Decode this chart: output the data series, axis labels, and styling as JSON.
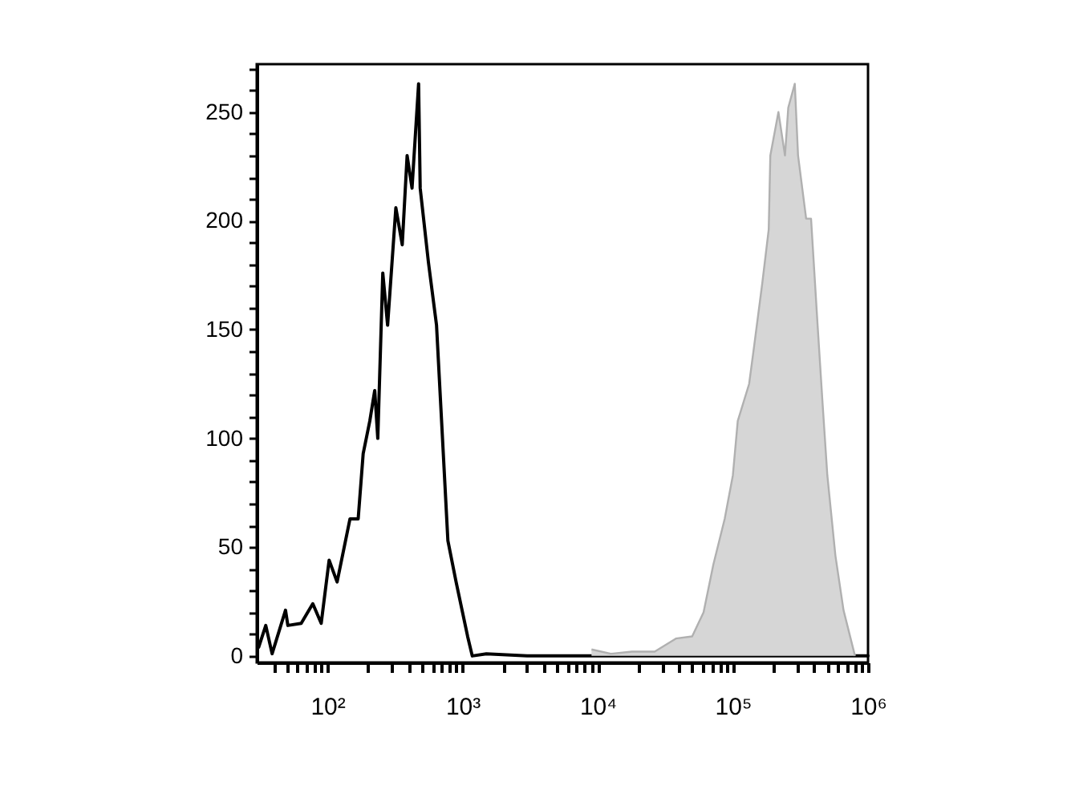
{
  "chart_data": {
    "type": "line",
    "log": "x",
    "grid": false,
    "xlim": [
      30,
      1000000
    ],
    "ylim": [
      -3,
      272
    ],
    "xticks": [
      {
        "value": 40,
        "label": null
      },
      {
        "value": 50,
        "label": null
      },
      {
        "value": 60,
        "label": null
      },
      {
        "value": 70,
        "label": null
      },
      {
        "value": 80,
        "label": null
      },
      {
        "value": 90,
        "label": null
      },
      {
        "value": 100,
        "label": "10²"
      },
      {
        "value": 200,
        "label": null
      },
      {
        "value": 300,
        "label": null
      },
      {
        "value": 400,
        "label": null
      },
      {
        "value": 500,
        "label": null
      },
      {
        "value": 600,
        "label": null
      },
      {
        "value": 700,
        "label": null
      },
      {
        "value": 800,
        "label": null
      },
      {
        "value": 900,
        "label": null
      },
      {
        "value": 1000,
        "label": "10³"
      },
      {
        "value": 2000,
        "label": null
      },
      {
        "value": 3000,
        "label": null
      },
      {
        "value": 4000,
        "label": null
      },
      {
        "value": 5000,
        "label": null
      },
      {
        "value": 6000,
        "label": null
      },
      {
        "value": 7000,
        "label": null
      },
      {
        "value": 8000,
        "label": null
      },
      {
        "value": 9000,
        "label": null
      },
      {
        "value": 10000,
        "label": "10⁴"
      },
      {
        "value": 20000,
        "label": null
      },
      {
        "value": 30000,
        "label": null
      },
      {
        "value": 40000,
        "label": null
      },
      {
        "value": 50000,
        "label": null
      },
      {
        "value": 60000,
        "label": null
      },
      {
        "value": 70000,
        "label": null
      },
      {
        "value": 80000,
        "label": null
      },
      {
        "value": 90000,
        "label": null
      },
      {
        "value": 100000,
        "label": "10⁵"
      },
      {
        "value": 200000,
        "label": null
      },
      {
        "value": 300000,
        "label": null
      },
      {
        "value": 400000,
        "label": null
      },
      {
        "value": 500000,
        "label": null
      },
      {
        "value": 600000,
        "label": null
      },
      {
        "value": 700000,
        "label": null
      },
      {
        "value": 800000,
        "label": null
      },
      {
        "value": 900000,
        "label": null
      },
      {
        "value": 1000000,
        "label": "10⁶"
      }
    ],
    "yticks": [
      0,
      {
        "value": 10,
        "label": null
      },
      {
        "value": 20,
        "label": null
      },
      {
        "value": 30,
        "label": null
      },
      {
        "value": 40,
        "label": null
      },
      50,
      {
        "value": 60,
        "label": null
      },
      {
        "value": 70,
        "label": null
      },
      {
        "value": 80,
        "label": null
      },
      {
        "value": 90,
        "label": null
      },
      100,
      {
        "value": 110,
        "label": null
      },
      {
        "value": 120,
        "label": null
      },
      {
        "value": 130,
        "label": null
      },
      {
        "value": 140,
        "label": null
      },
      150,
      {
        "value": 160,
        "label": null
      },
      {
        "value": 170,
        "label": null
      },
      {
        "value": 180,
        "label": null
      },
      {
        "value": 190,
        "label": null
      },
      200,
      {
        "value": 210,
        "label": null
      },
      {
        "value": 220,
        "label": null
      },
      {
        "value": 230,
        "label": null
      },
      {
        "value": 240,
        "label": null
      },
      250,
      {
        "value": 260,
        "label": null
      },
      {
        "value": 270,
        "label": null
      }
    ],
    "series": [
      {
        "color": "#000000",
        "x": [
          31,
          35,
          39,
          49,
          51,
          64,
          78,
          90,
          103,
          118,
          147,
          169,
          184,
          206,
          224,
          236,
          257,
          279,
          321,
          358,
          389,
          423,
          473,
          486,
          559,
          642,
          779,
          896,
          1090,
          1180,
          1500,
          3000,
          10000,
          100000,
          1000000
        ],
        "values": [
          4,
          14,
          1,
          21,
          14,
          15,
          24,
          15,
          44,
          34,
          63,
          63,
          93,
          108,
          122,
          100,
          176,
          152,
          206,
          189,
          230,
          215,
          263,
          215,
          181,
          152,
          53,
          34,
          9,
          0,
          1,
          0,
          0,
          0,
          0
        ]
      },
      {
        "type": "area",
        "color": "#d6d6d6",
        "x": [
          9000,
          12500,
          17900,
          26400,
          37900,
          50000,
          60700,
          71700,
          87000,
          100000,
          108700,
          131900,
          143400,
          164800,
          184200,
          189300,
          217300,
          243000,
          257000,
          287200,
          303600,
          348500,
          378800,
          423600,
          460000,
          500000,
          574000,
          659000,
          801000
        ],
        "values": [
          3,
          1,
          2,
          2,
          8,
          9,
          20,
          42,
          63,
          83,
          108,
          125,
          142,
          171,
          196,
          230,
          250,
          230,
          252,
          263,
          230,
          201,
          201,
          152,
          117,
          83,
          46,
          21,
          0
        ]
      }
    ]
  }
}
